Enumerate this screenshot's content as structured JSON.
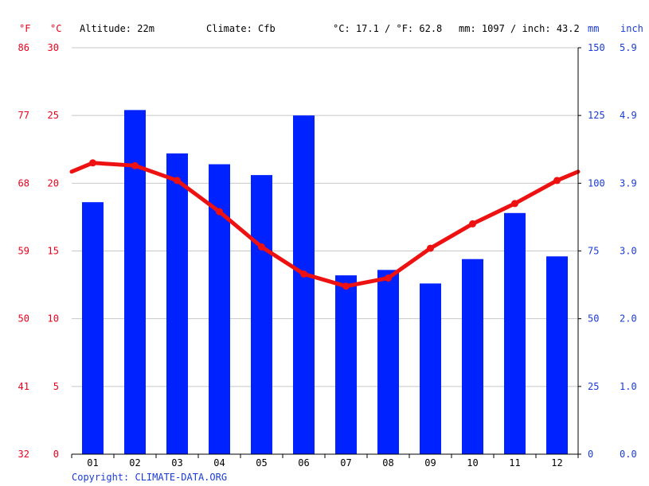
{
  "header": {
    "f_unit": "°F",
    "c_unit": "°C",
    "altitude": "Altitude: 22m",
    "climate": "Climate: Cfb",
    "temp_avg": "°C: 17.1 / °F: 62.8",
    "precip_total": "mm: 1097 / inch: 43.2",
    "mm_unit": "mm",
    "inch_unit": "inch"
  },
  "copyright": "Copyright: CLIMATE-DATA.ORG",
  "chart_data": {
    "type": "bar",
    "categories": [
      "01",
      "02",
      "03",
      "04",
      "05",
      "06",
      "07",
      "08",
      "09",
      "10",
      "11",
      "12"
    ],
    "series": [
      {
        "type": "bar",
        "axis": "right (mm)",
        "values": [
          93,
          127,
          111,
          107,
          103,
          125,
          66,
          68,
          63,
          72,
          89,
          73
        ]
      },
      {
        "type": "line",
        "axis": "left (°C)",
        "values": [
          21.5,
          21.3,
          20.2,
          17.9,
          15.3,
          13.3,
          12.4,
          13.0,
          15.2,
          17.0,
          18.5,
          20.2
        ]
      }
    ],
    "y_left_c_ticks": [
      0,
      5,
      10,
      15,
      20,
      25,
      30
    ],
    "y_left_f_ticks": [
      32,
      41,
      50,
      59,
      68,
      77,
      86
    ],
    "y_right_mm_ticks": [
      0,
      25,
      50,
      75,
      100,
      125,
      150
    ],
    "y_right_inch_ticks": [
      "0.0",
      "1.0",
      "2.0",
      "3.0",
      "3.9",
      "4.9",
      "5.9"
    ],
    "ylim_c": [
      0,
      30
    ],
    "ylim_mm": [
      0,
      150
    ],
    "grid": true,
    "colors": {
      "bars": "#0022ff",
      "line": "#ee1111",
      "left_axis_text": "#e8001c",
      "right_axis_text": "#1a3bd6"
    }
  }
}
